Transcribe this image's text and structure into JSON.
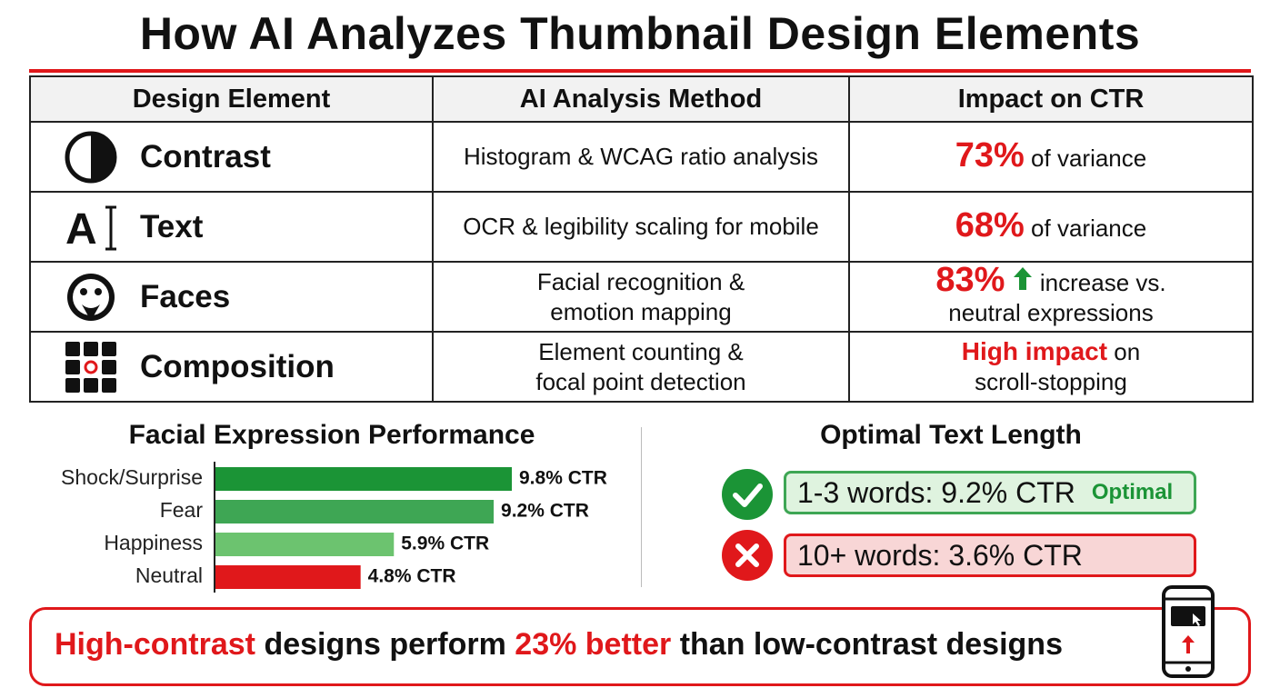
{
  "title": "How AI Analyzes Thumbnail Design Elements",
  "table": {
    "headers": [
      "Design Element",
      "AI Analysis Method",
      "Impact on CTR"
    ],
    "rows": [
      {
        "element": "Contrast",
        "method": [
          "Histogram & WCAG ratio analysis"
        ],
        "impact_highlight": "73%",
        "impact_text": [
          "of variance"
        ]
      },
      {
        "element": "Text",
        "method": [
          "OCR & legibility scaling for mobile"
        ],
        "impact_highlight": "68%",
        "impact_text": [
          "of variance"
        ]
      },
      {
        "element": "Faces",
        "method": [
          "Facial recognition &",
          "emotion mapping"
        ],
        "impact_highlight": "83%",
        "impact_text": [
          "increase vs.",
          "neutral expressions"
        ]
      },
      {
        "element": "Composition",
        "method": [
          "Element counting &",
          "focal point detection"
        ],
        "impact_highlight": "High impact",
        "impact_text": [
          "on",
          "scroll-stopping"
        ]
      }
    ]
  },
  "chart_data": {
    "type": "bar",
    "title": "Facial Expression Performance",
    "categories": [
      "Shock/Surprise",
      "Fear",
      "Happiness",
      "Neutral"
    ],
    "values": [
      9.8,
      9.2,
      5.9,
      4.8
    ],
    "value_labels": [
      "9.8% CTR",
      "9.2% CTR",
      "5.9% CTR",
      "4.8% CTR"
    ],
    "colors": [
      "#1b9436",
      "#3ea654",
      "#6cc36f",
      "#e0181b"
    ]
  },
  "text_length": {
    "title": "Optimal Text Length",
    "good": {
      "text": "1-3 words: 9.2% CTR",
      "badge": "Optimal"
    },
    "bad": {
      "text": "10+ words: 3.6% CTR"
    }
  },
  "banner": [
    "High-contrast",
    "designs perform",
    "23% better",
    "than low-contrast designs"
  ]
}
